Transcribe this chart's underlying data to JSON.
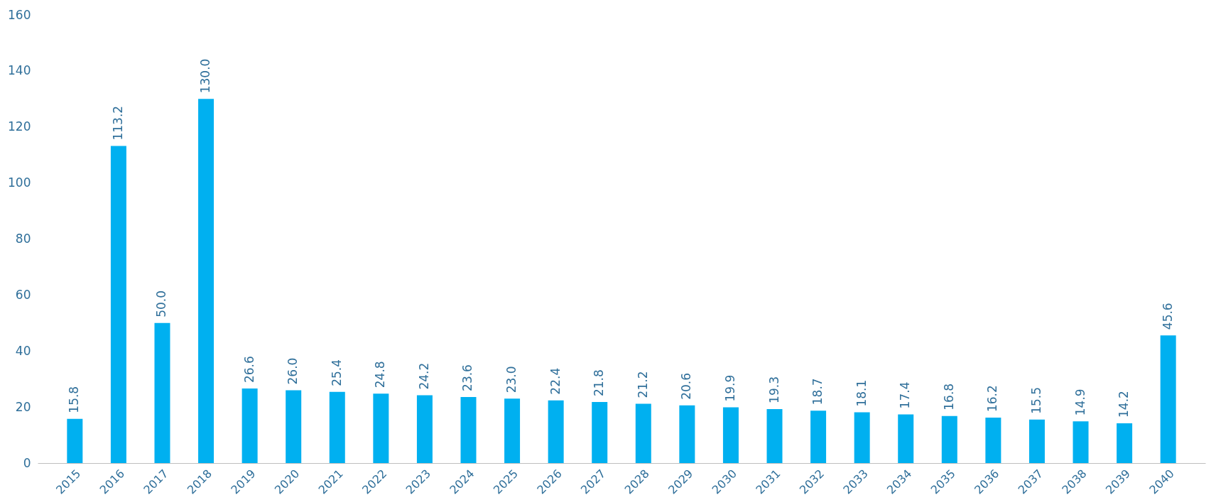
{
  "chart_data": {
    "type": "bar",
    "categories": [
      "2015",
      "2016",
      "2017",
      "2018",
      "2019",
      "2020",
      "2021",
      "2022",
      "2023",
      "2024",
      "2025",
      "2026",
      "2027",
      "2028",
      "2029",
      "2030",
      "2031",
      "2032",
      "2033",
      "2034",
      "2035",
      "2036",
      "2037",
      "2038",
      "2039",
      "2040"
    ],
    "values": [
      15.8,
      113.2,
      50.0,
      130.0,
      26.6,
      26.0,
      25.4,
      24.8,
      24.2,
      23.6,
      23.0,
      22.4,
      21.8,
      21.2,
      20.6,
      19.9,
      19.3,
      18.7,
      18.1,
      17.4,
      16.8,
      16.2,
      15.5,
      14.9,
      14.2,
      45.6
    ],
    "value_labels": [
      "15.8",
      "113.2",
      "50.0",
      "130.0",
      "26.6",
      "26.0",
      "25.4",
      "24.8",
      "24.2",
      "23.6",
      "23.0",
      "22.4",
      "21.8",
      "21.2",
      "20.6",
      "19.9",
      "19.3",
      "18.7",
      "18.1",
      "17.4",
      "16.8",
      "16.2",
      "15.5",
      "14.9",
      "14.2",
      "45.6"
    ],
    "color": "#00b0f0",
    "ylim": [
      0,
      160
    ],
    "yticks": [
      0,
      20,
      40,
      60,
      80,
      100,
      120,
      140,
      160
    ],
    "grid": false
  }
}
